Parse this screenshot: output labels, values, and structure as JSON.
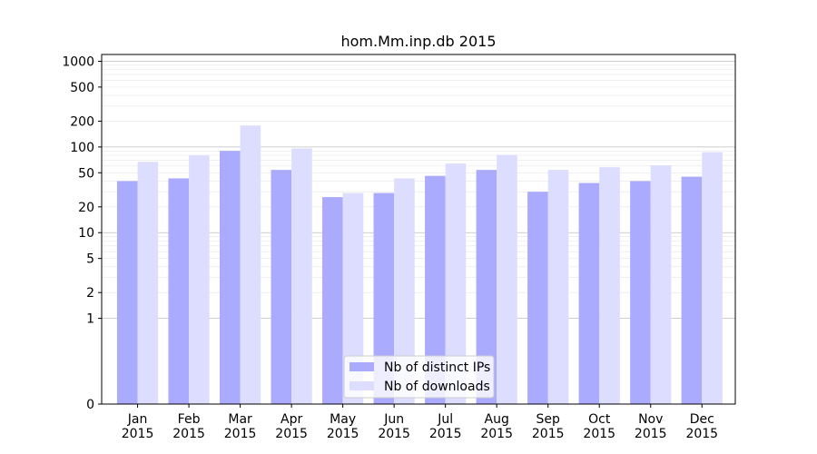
{
  "chart_data": {
    "type": "bar",
    "title": "hom.Mm.inp.db 2015",
    "xlabel": "",
    "ylabel": "",
    "y_scale": "symlog",
    "ylim": [
      0,
      1200
    ],
    "y_ticks": [
      0,
      1,
      2,
      5,
      10,
      20,
      50,
      100,
      200,
      500,
      1000
    ],
    "y_tick_labels": [
      "0",
      "1",
      "2",
      "5",
      "10",
      "20",
      "50",
      "100",
      "200",
      "500",
      "1000"
    ],
    "categories": [
      "Jan\n2015",
      "Feb\n2015",
      "Mar\n2015",
      "Apr\n2015",
      "May\n2015",
      "Jun\n2015",
      "Jul\n2015",
      "Aug\n2015",
      "Sep\n2015",
      "Oct\n2015",
      "Nov\n2015",
      "Dec\n2015"
    ],
    "series": [
      {
        "name": "Nb of distinct IPs",
        "color": "#aaaaff",
        "values": [
          40,
          43,
          90,
          54,
          26,
          29,
          46,
          54,
          30,
          38,
          40,
          45
        ]
      },
      {
        "name": "Nb of downloads",
        "color": "#ddddff",
        "values": [
          67,
          80,
          178,
          96,
          29,
          43,
          64,
          81,
          54,
          58,
          61,
          87
        ]
      }
    ],
    "grid": true,
    "legend_position": "lower-center"
  }
}
